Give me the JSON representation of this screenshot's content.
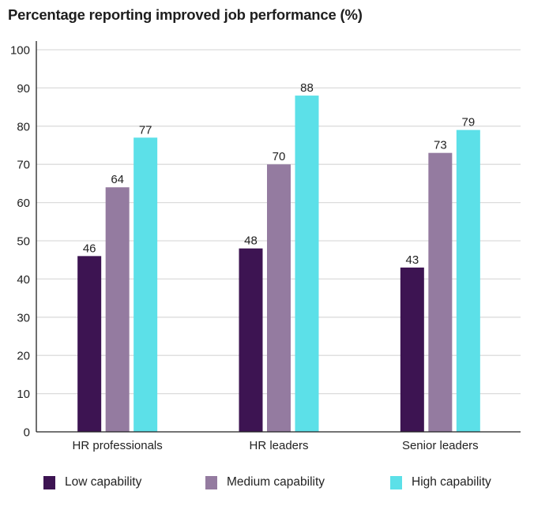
{
  "chart_data": {
    "type": "bar",
    "title": "Percentage reporting improved job performance (%)",
    "xlabel": "",
    "ylabel": "",
    "ylim": [
      0,
      100
    ],
    "yticks": [
      0,
      10,
      20,
      30,
      40,
      50,
      60,
      70,
      80,
      90,
      100
    ],
    "grid": true,
    "legend_position": "bottom",
    "categories": [
      "HR professionals",
      "HR leaders",
      "Senior leaders"
    ],
    "series": [
      {
        "name": "Low capability",
        "color": "#3d1452",
        "values": [
          46,
          48,
          43
        ]
      },
      {
        "name": "Medium capability",
        "color": "#947ba0",
        "values": [
          64,
          70,
          73
        ]
      },
      {
        "name": "High capability",
        "color": "#5ce0e8",
        "values": [
          77,
          88,
          79
        ]
      }
    ],
    "data_labels": true
  },
  "colors": {
    "grid": "#dcdcdc",
    "axis": "#222222"
  }
}
